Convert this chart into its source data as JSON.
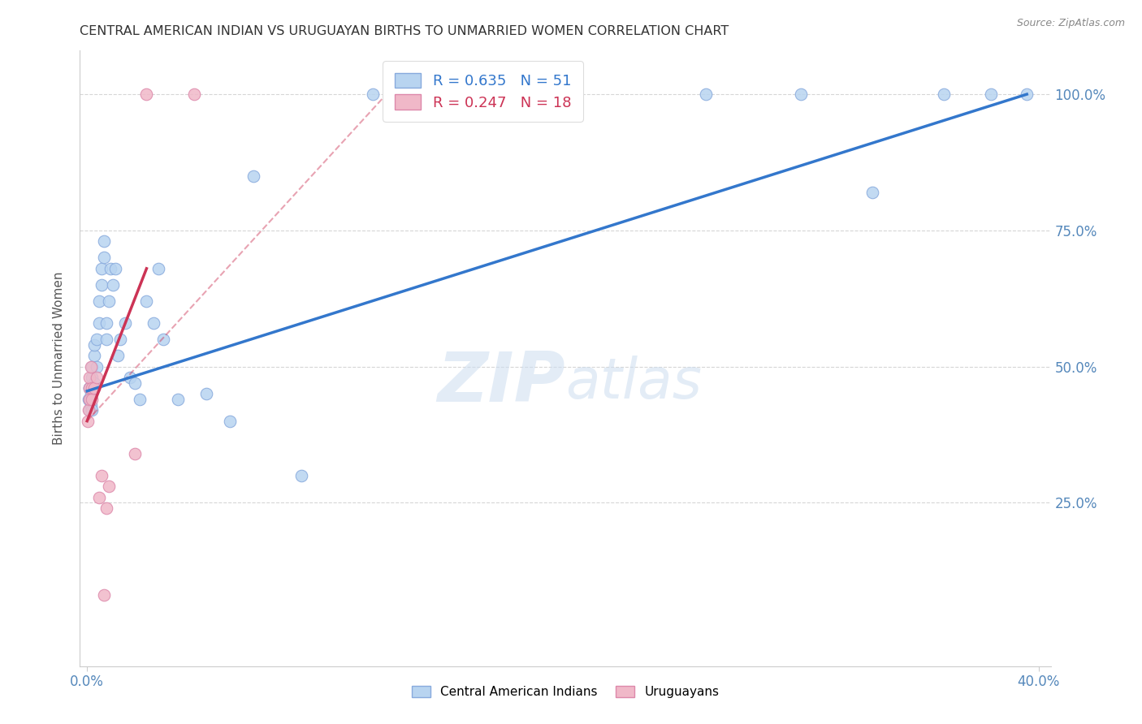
{
  "title": "CENTRAL AMERICAN INDIAN VS URUGUAYAN BIRTHS TO UNMARRIED WOMEN CORRELATION CHART",
  "source": "Source: ZipAtlas.com",
  "ylabel": "Births to Unmarried Women",
  "xlim": [
    -0.003,
    0.405
  ],
  "ylim": [
    -0.05,
    1.08
  ],
  "yticks": [
    0.25,
    0.5,
    0.75,
    1.0
  ],
  "ytick_labels": [
    "25.0%",
    "50.0%",
    "75.0%",
    "100.0%"
  ],
  "xticks": [
    0.0,
    0.4
  ],
  "xtick_labels": [
    "0.0%",
    "40.0%"
  ],
  "blue_color": "#b8d4f0",
  "blue_edge": "#88aadd",
  "pink_color": "#f0b8c8",
  "pink_edge": "#dd88aa",
  "blue_line_color": "#3377cc",
  "pink_line_color": "#cc3355",
  "grid_color": "#cccccc",
  "axis_label_color": "#5588bb",
  "title_color": "#333333",
  "legend_R_blue": "R = 0.635",
  "legend_N_blue": "N = 51",
  "legend_R_pink": "R = 0.247",
  "legend_N_pink": "N = 18",
  "blue_scatter_x": [
    0.0005,
    0.0008,
    0.001,
    0.001,
    0.001,
    0.0015,
    0.0018,
    0.002,
    0.002,
    0.002,
    0.003,
    0.003,
    0.003,
    0.004,
    0.004,
    0.005,
    0.005,
    0.006,
    0.006,
    0.007,
    0.007,
    0.008,
    0.008,
    0.009,
    0.01,
    0.011,
    0.012,
    0.013,
    0.014,
    0.016,
    0.018,
    0.02,
    0.022,
    0.025,
    0.028,
    0.03,
    0.032,
    0.038,
    0.05,
    0.06,
    0.07,
    0.09,
    0.12,
    0.155,
    0.2,
    0.26,
    0.3,
    0.33,
    0.36,
    0.38,
    0.395
  ],
  "blue_scatter_y": [
    0.44,
    0.46,
    0.42,
    0.44,
    0.46,
    0.45,
    0.43,
    0.42,
    0.48,
    0.5,
    0.47,
    0.52,
    0.54,
    0.5,
    0.55,
    0.58,
    0.62,
    0.65,
    0.68,
    0.7,
    0.73,
    0.55,
    0.58,
    0.62,
    0.68,
    0.65,
    0.68,
    0.52,
    0.55,
    0.58,
    0.48,
    0.47,
    0.44,
    0.62,
    0.58,
    0.68,
    0.55,
    0.44,
    0.45,
    0.4,
    0.85,
    0.3,
    1.0,
    1.0,
    1.0,
    1.0,
    1.0,
    0.82,
    1.0,
    1.0,
    1.0
  ],
  "pink_scatter_x": [
    0.0003,
    0.0005,
    0.0008,
    0.001,
    0.001,
    0.0015,
    0.002,
    0.002,
    0.003,
    0.004,
    0.005,
    0.006,
    0.007,
    0.008,
    0.009,
    0.02,
    0.025,
    0.045
  ],
  "pink_scatter_y": [
    0.4,
    0.42,
    0.44,
    0.46,
    0.48,
    0.5,
    0.44,
    0.46,
    0.46,
    0.48,
    0.26,
    0.3,
    0.08,
    0.24,
    0.28,
    0.34,
    1.0,
    1.0
  ],
  "blue_line_x": [
    0.0,
    0.395
  ],
  "blue_line_y": [
    0.455,
    1.0
  ],
  "pink_solid_line_x": [
    0.0,
    0.025
  ],
  "pink_solid_line_y": [
    0.4,
    0.68
  ],
  "pink_dashed_line_x": [
    0.0,
    0.13
  ],
  "pink_dashed_line_y": [
    0.4,
    1.02
  ],
  "marker_size": 110
}
